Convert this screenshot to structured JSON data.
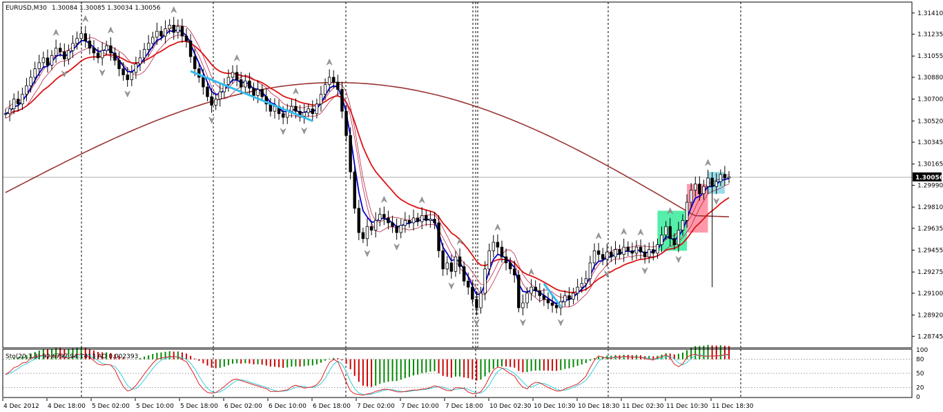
{
  "chart_data": {
    "type": "candlestick",
    "symbol_header": "EURUSD,M30",
    "ohlc_header": "1.30084 1.30085 1.30034 1.30056",
    "current_price": 1.30056,
    "current_price_label": "1.30056",
    "ylim": [
      1.2865,
      1.315
    ],
    "y_ticks": [
      "1.31410",
      "1.31235",
      "1.31055",
      "1.30880",
      "1.30700",
      "1.30520",
      "1.30345",
      "1.30165",
      "1.29990",
      "1.29810",
      "1.29635",
      "1.29455",
      "1.29275",
      "1.29100",
      "1.28920",
      "1.28745"
    ],
    "x_ticks": [
      "4 Dec 2012",
      "4 Dec 18:00",
      "5 Dec 02:00",
      "5 Dec 10:00",
      "5 Dec 18:00",
      "6 Dec 02:00",
      "6 Dec 10:00",
      "6 Dec 18:00",
      "7 Dec 02:00",
      "7 Dec 10:00",
      "7 Dec 18:00",
      "10 Dec 02:30",
      "10 Dec 10:30",
      "10 Dec 18:30",
      "11 Dec 02:30",
      "11 Dec 10:30",
      "11 Dec 18:30"
    ],
    "closes": [
      1.3058,
      1.3062,
      1.307,
      1.3066,
      1.3074,
      1.3081,
      1.3088,
      1.3095,
      1.31,
      1.3104,
      1.3098,
      1.3106,
      1.3112,
      1.3109,
      1.3103,
      1.311,
      1.3116,
      1.312,
      1.3124,
      1.3118,
      1.3112,
      1.3108,
      1.3104,
      1.311,
      1.3114,
      1.3108,
      1.3102,
      1.3095,
      1.309,
      1.3086,
      1.3092,
      1.3099,
      1.3104,
      1.3111,
      1.3116,
      1.3121,
      1.3126,
      1.3122,
      1.3128,
      1.3131,
      1.3125,
      1.313,
      1.3122,
      1.3118,
      1.3105,
      1.3095,
      1.3088,
      1.308,
      1.3072,
      1.3065,
      1.307,
      1.3076,
      1.3082,
      1.3088,
      1.3092,
      1.3086,
      1.308,
      1.3085,
      1.3079,
      1.3073,
      1.3078,
      1.3072,
      1.3066,
      1.306,
      1.3064,
      1.3058,
      1.3055,
      1.306,
      1.3064,
      1.306,
      1.3056,
      1.3059,
      1.3062,
      1.3058,
      1.3066,
      1.3074,
      1.3082,
      1.3088,
      1.3084,
      1.3078,
      1.306,
      1.304,
      1.301,
      1.298,
      1.296,
      1.2955,
      1.2965,
      1.2962,
      1.297,
      1.2975,
      1.2972,
      1.2968,
      1.2965,
      1.296,
      1.2966,
      1.297,
      1.2968,
      1.2972,
      1.2969,
      1.2974,
      1.297,
      1.2971,
      1.2968,
      1.2945,
      1.293,
      1.2935,
      1.2928,
      1.294,
      1.2932,
      1.292,
      1.2915,
      1.2905,
      1.2898,
      1.291,
      1.293,
      1.2945,
      1.2952,
      1.2948,
      1.294,
      1.2935,
      1.293,
      1.2925,
      1.2898,
      1.2902,
      1.291,
      1.2915,
      1.2912,
      1.2908,
      1.2905,
      1.2902,
      1.29,
      1.2898,
      1.2903,
      1.2908,
      1.2905,
      1.291,
      1.2915,
      1.2918,
      1.2922,
      1.2935,
      1.2945,
      1.2942,
      1.2938,
      1.2944,
      1.294,
      1.2946,
      1.2942,
      1.2948,
      1.2945,
      1.2943,
      1.2948,
      1.2944,
      1.294,
      1.2946,
      1.2943,
      1.295,
      1.2958,
      1.2965,
      1.2955,
      1.295,
      1.2962,
      1.297,
      1.2985,
      1.2995,
      1.3,
      1.2992,
      1.2998,
      1.3005,
      1.2998,
      1.3002,
      1.3008,
      1.3005,
      1.3006
    ]
  },
  "indicator": {
    "label": "Sto(20,3,3) 92.6797 94.1413  AO 0.002393",
    "y_ticks": [
      "100",
      "80",
      "50",
      "20",
      "0"
    ]
  },
  "colors": {
    "blue_ma": "#0000cc",
    "red_ma": "#dd1111",
    "brown_ma": "#993333",
    "thin_ma": "#bb2244",
    "trendline": "#33bbee",
    "ao_up": "#008800",
    "ao_down": "#cc0000",
    "sto_main": "#dd2222",
    "sto_signal": "#33ccdd",
    "box_green": "#55eeaa",
    "box_pink": "#ff99aa",
    "box_cyan": "#99dde8"
  }
}
